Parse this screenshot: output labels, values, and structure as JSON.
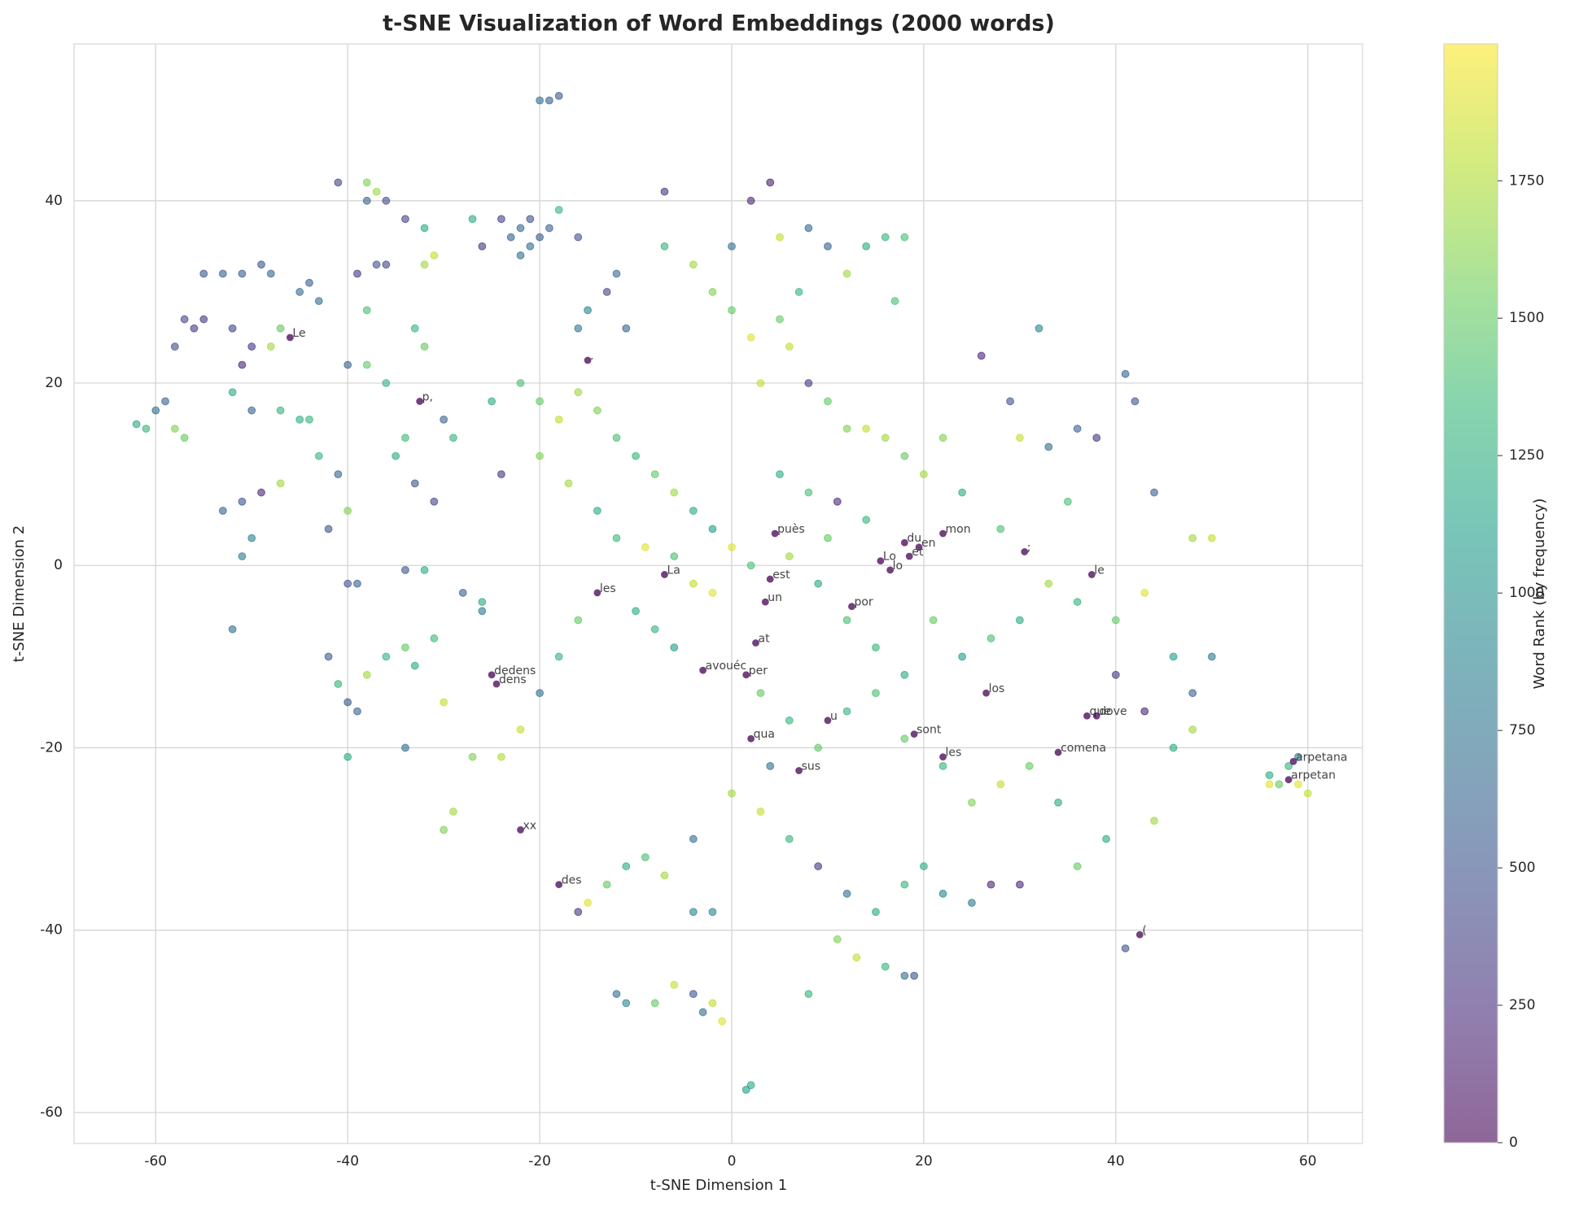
{
  "chart_data": {
    "type": "scatter",
    "title": "t-SNE Visualization of Word Embeddings (2000 words)",
    "x_label": "t-SNE Dimension 1",
    "y_label": "t-SNE Dimension 2",
    "colorbar_label": "Word Rank (by frequency)",
    "colormap": "viridis",
    "grid": true,
    "xlim": [
      -68.5,
      65.7
    ],
    "ylim": [
      -63.4,
      57.2
    ],
    "clim": [
      0,
      1999
    ],
    "xticks": [
      -60,
      -40,
      -20,
      0,
      20,
      40,
      60
    ],
    "yticks": [
      -60,
      -40,
      -20,
      0,
      20,
      40
    ],
    "cticks": [
      0,
      250,
      500,
      750,
      1000,
      1250,
      1500,
      1750
    ],
    "x": [
      -57,
      -56,
      -55,
      -58,
      -59,
      -60,
      -61,
      -62,
      -58,
      -57,
      -55,
      -53,
      -51,
      -49,
      -48,
      -52,
      -50,
      -51,
      -48,
      -47,
      -45,
      -44,
      -43,
      -52,
      -50,
      -47,
      -45,
      -44,
      -51,
      -53,
      -50,
      -51,
      -52,
      -49,
      -47,
      -43,
      -41,
      -40,
      -42,
      -41,
      -38,
      -37,
      -38,
      -36,
      -39,
      -37,
      -36,
      -38,
      -40,
      -38,
      -36,
      -34,
      -32,
      -32,
      -31,
      -33,
      -32,
      -30,
      -29,
      -34,
      -35,
      -33,
      -31,
      -34,
      -32,
      -40,
      -39,
      -42,
      -41,
      -40,
      -39,
      -38,
      -36,
      -34,
      -33,
      -31,
      -30,
      -40,
      -34,
      -29,
      -30,
      -27,
      -24,
      -23,
      -22,
      -21,
      -20,
      -21,
      -22,
      -19,
      -18,
      -24,
      -26,
      -27,
      -20,
      -19,
      -18,
      -16,
      -15,
      -16,
      -13,
      -12,
      -11,
      -25,
      -22,
      -20,
      -18,
      -16,
      -14,
      -12,
      -10,
      -8,
      -6,
      -4,
      -2,
      0,
      2,
      -24,
      -20,
      -17,
      -14,
      -12,
      -9,
      -6,
      -4,
      -2,
      -10,
      -8,
      -6,
      -16,
      -18,
      -20,
      -22,
      -26,
      -28,
      -26,
      0,
      2,
      4,
      -7,
      -7,
      -4,
      -2,
      0,
      2,
      5,
      7,
      10,
      12,
      14,
      16,
      18,
      17,
      5,
      8,
      3,
      6,
      8,
      10,
      12,
      14,
      16,
      18,
      20,
      22,
      24,
      28,
      30,
      33,
      36,
      38,
      32,
      26,
      29,
      5,
      8,
      11,
      14,
      10,
      6,
      9,
      12,
      15,
      18,
      21,
      24,
      27,
      30,
      33,
      36,
      40,
      43,
      46,
      48,
      50,
      48,
      50,
      44,
      42,
      41,
      35,
      3,
      6,
      9,
      12,
      15,
      18,
      22,
      25,
      28,
      31,
      34,
      36,
      39,
      41,
      44,
      46,
      48,
      43,
      40,
      0,
      3,
      6,
      9,
      12,
      15,
      18,
      20,
      22,
      25,
      27,
      30,
      11,
      13,
      16,
      18,
      19,
      8,
      2,
      1.5,
      -6,
      -4,
      -3,
      -2,
      -1,
      -12,
      -11,
      -8,
      -7,
      -9,
      -11,
      -13,
      -15,
      -16,
      -4,
      -2,
      -4,
      4,
      56,
      57,
      58,
      59,
      59,
      60,
      56
    ],
    "y": [
      27,
      26,
      27,
      24,
      18,
      17,
      15,
      15.5,
      15,
      14,
      32,
      32,
      32,
      33,
      32,
      26,
      24,
      22,
      24,
      26,
      30,
      31,
      29,
      19,
      17,
      17,
      16,
      16,
      7,
      6,
      3,
      1,
      -7,
      8,
      9,
      12,
      10,
      6,
      4,
      42,
      42,
      41,
      40,
      40,
      32,
      33,
      33,
      28,
      22,
      22,
      20,
      38,
      37,
      33,
      34,
      26,
      24,
      16,
      14,
      14,
      12,
      9,
      7,
      -0.5,
      -0.5,
      -2,
      -2,
      -10,
      -13,
      -15,
      -16,
      -12,
      -10,
      -9,
      -11,
      -8,
      -15,
      -21,
      -20,
      -27,
      -29,
      -21,
      -21,
      36,
      37,
      35,
      36,
      38,
      34,
      37,
      39,
      38,
      35,
      38,
      51,
      51,
      51.5,
      36,
      28,
      26,
      30,
      32,
      26,
      18,
      20,
      18,
      16,
      19,
      17,
      14,
      12,
      10,
      8,
      6,
      4,
      2,
      0,
      10,
      12,
      9,
      6,
      3,
      2,
      1,
      -2,
      -3,
      -5,
      -7,
      -9,
      -6,
      -10,
      -14,
      -18,
      -5,
      -3,
      -4,
      35,
      40,
      42,
      41,
      35,
      33,
      30,
      28,
      25,
      27,
      30,
      35,
      32,
      35,
      36,
      36,
      29,
      36,
      37,
      20,
      24,
      20,
      18,
      15,
      15,
      14,
      12,
      10,
      14,
      8,
      4,
      14,
      13,
      15,
      14,
      26,
      23,
      18,
      10,
      8,
      7,
      5,
      3,
      1,
      -2,
      -6,
      -9,
      -12,
      -6,
      -10,
      -8,
      -6,
      -2,
      -4,
      -6,
      -3,
      -10,
      -14,
      -10,
      3,
      3,
      8,
      18,
      21,
      7,
      -14,
      -17,
      -20,
      -16,
      -14,
      -19,
      -22,
      -26,
      -24,
      -22,
      -26,
      -33,
      -30,
      -42,
      -28,
      -20,
      -18,
      -16,
      -12,
      -25,
      -27,
      -30,
      -33,
      -36,
      -38,
      -35,
      -33,
      -36,
      -37,
      -35,
      -35,
      -41,
      -43,
      -44,
      -45,
      -45,
      -47,
      -57,
      -57.5,
      -46,
      -47,
      -49,
      -48,
      -50,
      -47,
      -48,
      -48,
      -34,
      -32,
      -33,
      -35,
      -37,
      -38,
      -30,
      -38,
      -38,
      -22,
      -23,
      -24,
      -22,
      -21,
      -24,
      -25,
      -24
    ],
    "color_values": [
      400,
      350,
      300,
      450,
      600,
      700,
      1300,
      1200,
      1600,
      1500,
      500,
      600,
      550,
      500,
      650,
      400,
      300,
      200,
      1700,
      1500,
      650,
      600,
      700,
      1200,
      600,
      1300,
      1250,
      1300,
      500,
      600,
      900,
      800,
      700,
      200,
      1700,
      1300,
      600,
      1600,
      500,
      400,
      1600,
      1700,
      600,
      450,
      300,
      500,
      400,
      1400,
      600,
      1500,
      1300,
      400,
      1200,
      1700,
      1800,
      1300,
      1500,
      600,
      1300,
      1350,
      1200,
      500,
      400,
      500,
      1200,
      500,
      600,
      550,
      1300,
      500,
      600,
      1700,
      1300,
      1500,
      1200,
      1350,
      1800,
      1200,
      700,
      1700,
      1600,
      1600,
      1750,
      600,
      650,
      700,
      550,
      500,
      700,
      600,
      1300,
      400,
      300,
      1200,
      700,
      600,
      550,
      500,
      900,
      800,
      400,
      700,
      600,
      1200,
      1400,
      1500,
      1800,
      1700,
      1600,
      1400,
      1300,
      1500,
      1700,
      1200,
      1100,
      1900,
      1400,
      300,
      1600,
      1700,
      1200,
      1350,
      1900,
      1400,
      1800,
      1900,
      1200,
      1300,
      1100,
      1500,
      1300,
      700,
      1800,
      800,
      600,
      1200,
      700,
      200,
      150,
      300,
      1300,
      1700,
      1600,
      1500,
      1900,
      1500,
      1300,
      600,
      1700,
      1200,
      1300,
      1400,
      1400,
      1800,
      650,
      1800,
      1800,
      300,
      1500,
      1600,
      1800,
      1700,
      1500,
      1700,
      1600,
      1200,
      1400,
      1800,
      700,
      600,
      300,
      900,
      200,
      500,
      1200,
      1400,
      200,
      1300,
      1500,
      1700,
      1200,
      1400,
      1300,
      1200,
      1500,
      1100,
      1400,
      1200,
      1700,
      1300,
      1500,
      1900,
      1100,
      600,
      800,
      1700,
      1800,
      600,
      500,
      600,
      1400,
      1500,
      1300,
      1500,
      1300,
      1400,
      1500,
      1300,
      1600,
      1800,
      1500,
      1200,
      1500,
      1200,
      500,
      1700,
      1200,
      1700,
      200,
      300,
      1700,
      1800,
      1300,
      300,
      700,
      1200,
      1300,
      1200,
      900,
      800,
      200,
      200,
      1600,
      1800,
      1300,
      700,
      500,
      1300,
      1200,
      1100,
      1800,
      500,
      700,
      1800,
      1900,
      700,
      900,
      1500,
      1700,
      1400,
      1200,
      1500,
      1900,
      300,
      700,
      900,
      900,
      700,
      1200,
      1500,
      1300,
      900,
      1900,
      1800,
      1900
    ],
    "annotations": [
      {
        "text": "Le",
        "x": -46,
        "y": 25
      },
      {
        "text": "p,",
        "x": -32.5,
        "y": 18
      },
      {
        "text": ".",
        "x": -15,
        "y": 22.5
      },
      {
        "text": "dedens",
        "x": -25,
        "y": -12
      },
      {
        "text": "dens",
        "x": -24.5,
        "y": -13
      },
      {
        "text": "xx",
        "x": -22,
        "y": -29
      },
      {
        "text": "des",
        "x": -18,
        "y": -35
      },
      {
        "text": "les",
        "x": -14,
        "y": -3
      },
      {
        "text": "La",
        "x": -7,
        "y": -1
      },
      {
        "text": "puès",
        "x": 4.5,
        "y": 3.5
      },
      {
        "text": "est",
        "x": 4,
        "y": -1.5
      },
      {
        "text": "un",
        "x": 3.5,
        "y": -4
      },
      {
        "text": "at",
        "x": 2.5,
        "y": -8.5
      },
      {
        "text": "avouéc",
        "x": -3,
        "y": -11.5
      },
      {
        "text": "per",
        "x": 1.5,
        "y": -12
      },
      {
        "text": "qua",
        "x": 2,
        "y": -19
      },
      {
        "text": "sus",
        "x": 7,
        "y": -22.5
      },
      {
        "text": "u",
        "x": 10,
        "y": -17
      },
      {
        "text": "por",
        "x": 12.5,
        "y": -4.5
      },
      {
        "text": "Lo",
        "x": 15.5,
        "y": 0.5
      },
      {
        "text": "lo",
        "x": 16.5,
        "y": -0.5
      },
      {
        "text": "du",
        "x": 18,
        "y": 2.5
      },
      {
        "text": "en",
        "x": 19.5,
        "y": 2
      },
      {
        "text": "et",
        "x": 18.5,
        "y": 1
      },
      {
        "text": "mon",
        "x": 22,
        "y": 3.5
      },
      {
        "text": "sont",
        "x": 19,
        "y": -18.5
      },
      {
        "text": "les",
        "x": 22,
        "y": -21
      },
      {
        "text": "los",
        "x": 26.5,
        "y": -14
      },
      {
        "text": ";",
        "x": 30.5,
        "y": 1.5
      },
      {
        "text": "comena",
        "x": 34,
        "y": -20.5
      },
      {
        "text": "le",
        "x": 37.5,
        "y": -1
      },
      {
        "text": "que",
        "x": 37,
        "y": -16.5
      },
      {
        "text": "dove",
        "x": 38,
        "y": -16.5
      },
      {
        "text": "(",
        "x": 42.5,
        "y": -40.5
      },
      {
        "text": "arpetana",
        "x": 58.5,
        "y": -21.5
      },
      {
        "text": "arpetan",
        "x": 58,
        "y": -23.5
      }
    ]
  }
}
